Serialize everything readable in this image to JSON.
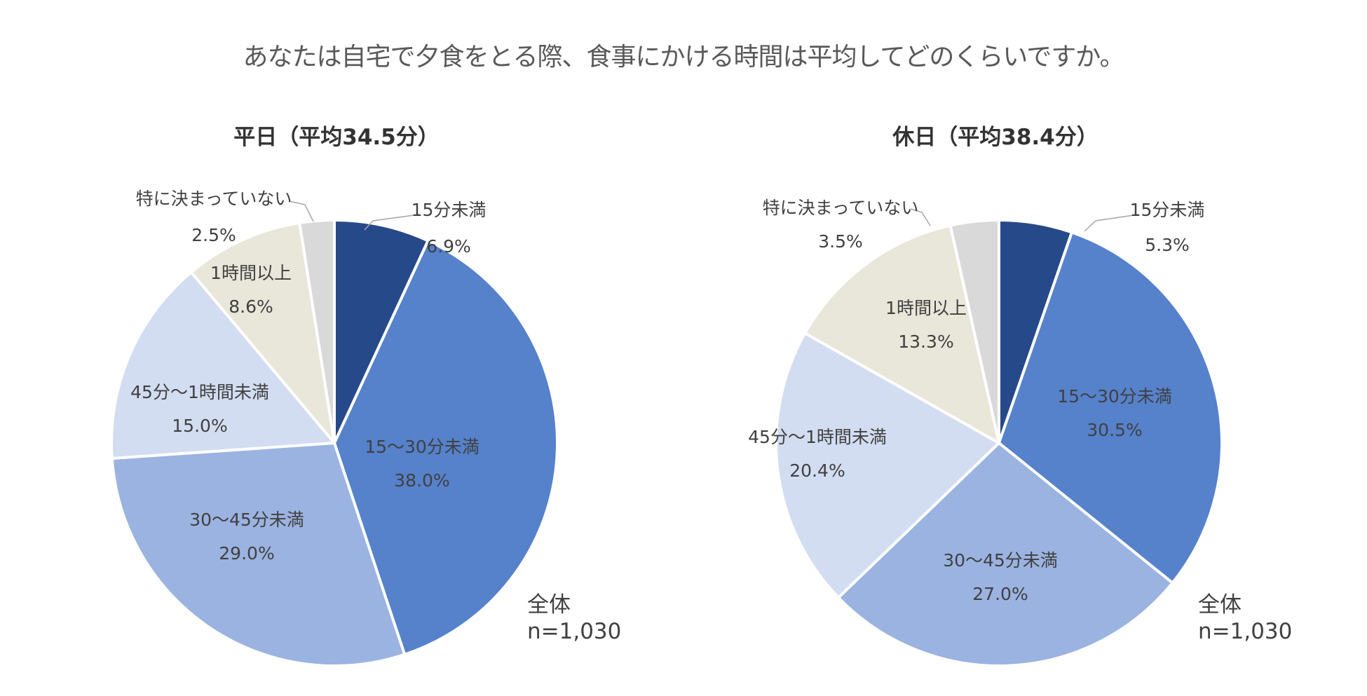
{
  "title": "あなたは自宅で夕食をとる際、食事にかける時間は平均してどのくらいですか。",
  "chart_data": [
    {
      "type": "pie",
      "title": "平日（平均34.5分）",
      "note": {
        "line1": "全体",
        "line2": "n=1,030"
      },
      "slices": [
        {
          "label": "15分未満",
          "value": 6.9,
          "value_text": "6.9%",
          "color": "#264989"
        },
        {
          "label": "15～30分未満",
          "value": 38.0,
          "value_text": "38.0%",
          "color": "#5681CB"
        },
        {
          "label": "30～45分未満",
          "value": 29.0,
          "value_text": "29.0%",
          "color": "#9BB3E0"
        },
        {
          "label": "45分～1時間未満",
          "value": 15.0,
          "value_text": "15.0%",
          "color": "#D3DDF1"
        },
        {
          "label": "1時間以上",
          "value": 8.6,
          "value_text": "8.6%",
          "color": "#E9E6DA"
        },
        {
          "label": "特に決まっていない",
          "value": 2.5,
          "value_text": "2.5%",
          "color": "#D9D9D9"
        }
      ]
    },
    {
      "type": "pie",
      "title": "休日（平均38.4分）",
      "note": {
        "line1": "全体",
        "line2": "n=1,030"
      },
      "slices": [
        {
          "label": "15分未満",
          "value": 5.3,
          "value_text": "5.3%",
          "color": "#264989"
        },
        {
          "label": "15～30分未満",
          "value": 30.5,
          "value_text": "30.5%",
          "color": "#5681CB"
        },
        {
          "label": "30～45分未満",
          "value": 27.0,
          "value_text": "27.0%",
          "color": "#9BB3E0"
        },
        {
          "label": "45分～1時間未満",
          "value": 20.4,
          "value_text": "20.4%",
          "color": "#D3DDF1"
        },
        {
          "label": "1時間以上",
          "value": 13.3,
          "value_text": "13.3%",
          "color": "#E9E6DA"
        },
        {
          "label": "特に決まっていない",
          "value": 3.5,
          "value_text": "3.5%",
          "color": "#D9D9D9"
        }
      ]
    }
  ]
}
